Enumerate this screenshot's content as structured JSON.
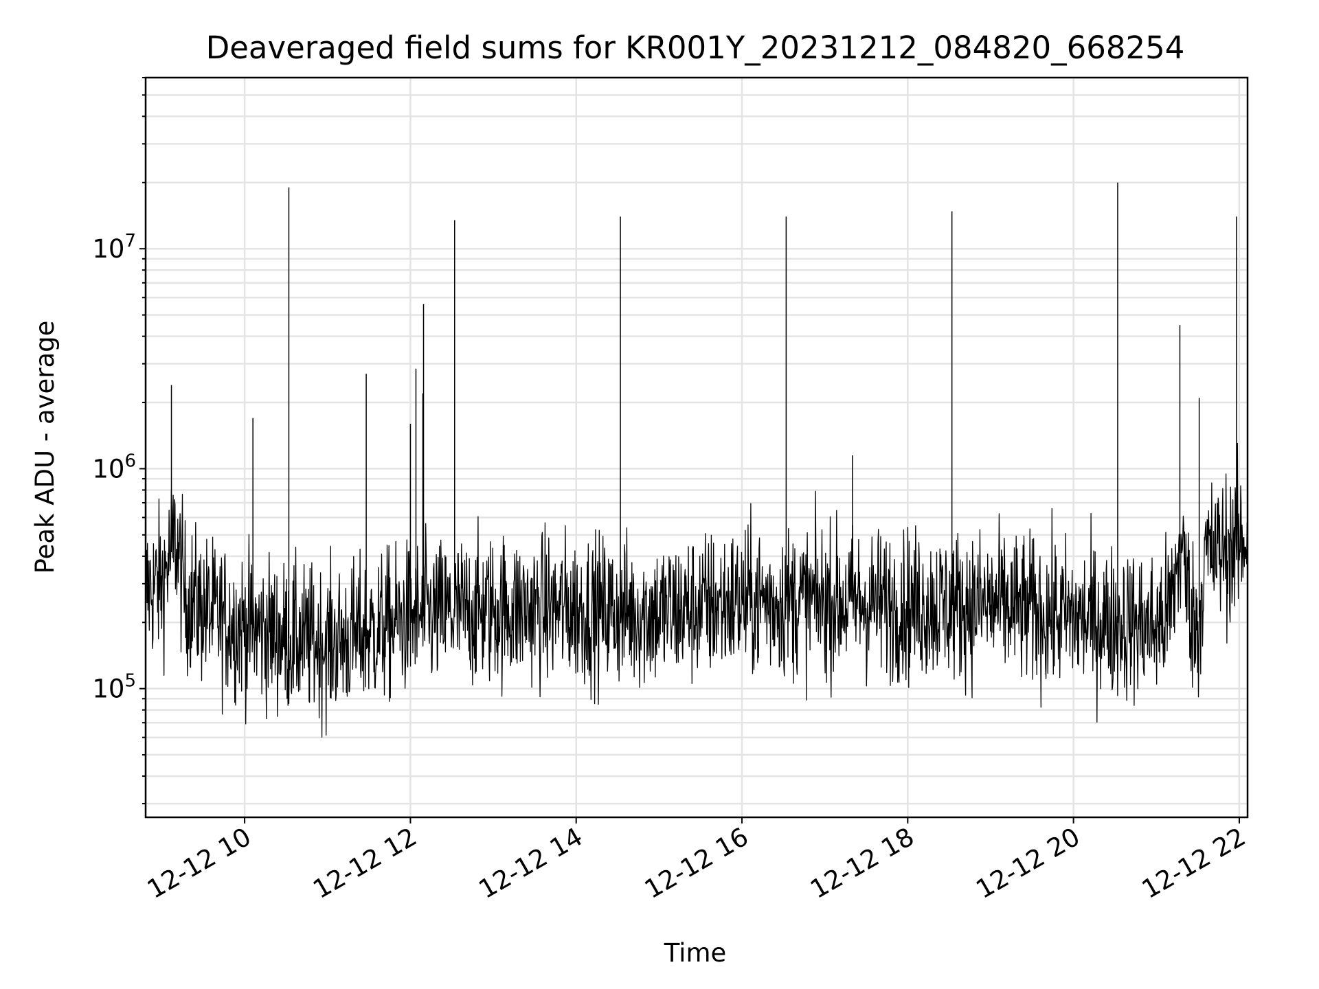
{
  "chart_data": {
    "type": "line",
    "title": "Deaveraged field sums for KR001Y_20231212_084820_668254",
    "xlabel": "Time",
    "ylabel": "Peak ADU - average",
    "yscale": "log",
    "ylim": [
      26000,
      60000000
    ],
    "xlim": [
      "2023-12-12T08:48:20",
      "2023-12-12T22:06:00"
    ],
    "x_ticks": [
      {
        "label": "12-12 10",
        "value": "2023-12-12T10:00:00"
      },
      {
        "label": "12-12 12",
        "value": "2023-12-12T12:00:00"
      },
      {
        "label": "12-12 14",
        "value": "2023-12-12T14:00:00"
      },
      {
        "label": "12-12 16",
        "value": "2023-12-12T16:00:00"
      },
      {
        "label": "12-12 18",
        "value": "2023-12-12T18:00:00"
      },
      {
        "label": "12-12 20",
        "value": "2023-12-12T20:00:00"
      },
      {
        "label": "12-12 22",
        "value": "2023-12-12T22:00:00"
      }
    ],
    "y_ticks": [
      {
        "base": "10",
        "exp": "5",
        "value": 100000
      },
      {
        "base": "10",
        "exp": "6",
        "value": 1000000
      },
      {
        "base": "10",
        "exp": "7",
        "value": 10000000
      }
    ],
    "grid": "on",
    "line_color": "#000000",
    "baseline": [
      [
        "2023-12-12T08:48:20",
        280000
      ],
      [
        "2023-12-12T09:00:00",
        300000
      ],
      [
        "2023-12-12T09:10:00",
        480000
      ],
      [
        "2023-12-12T09:17:00",
        260000
      ],
      [
        "2023-12-12T09:40:00",
        210000
      ],
      [
        "2023-12-12T10:30:00",
        170000
      ],
      [
        "2023-12-12T11:00:00",
        160000
      ],
      [
        "2023-12-12T11:30:00",
        180000
      ],
      [
        "2023-12-12T12:00:00",
        210000
      ],
      [
        "2023-12-12T13:00:00",
        230000
      ],
      [
        "2023-12-12T14:00:00",
        230000
      ],
      [
        "2023-12-12T15:00:00",
        220000
      ],
      [
        "2023-12-12T16:00:00",
        250000
      ],
      [
        "2023-12-12T17:00:00",
        250000
      ],
      [
        "2023-12-12T18:00:00",
        240000
      ],
      [
        "2023-12-12T19:00:00",
        240000
      ],
      [
        "2023-12-12T20:00:00",
        210000
      ],
      [
        "2023-12-12T21:00:00",
        190000
      ],
      [
        "2023-12-12T21:10:00",
        230000
      ],
      [
        "2023-12-12T21:18:00",
        450000
      ],
      [
        "2023-12-12T21:25:00",
        230000
      ],
      [
        "2023-12-12T21:30:00",
        180000
      ],
      [
        "2023-12-12T21:35:00",
        400000
      ],
      [
        "2023-12-12T22:00:00",
        450000
      ],
      [
        "2023-12-12T22:06:00",
        500000
      ]
    ],
    "spikes": [
      {
        "x": "2023-12-12T09:07:00",
        "y": 2400000
      },
      {
        "x": "2023-12-12T10:06:00",
        "y": 1700000
      },
      {
        "x": "2023-12-12T10:32:00",
        "y": 19000000
      },
      {
        "x": "2023-12-12T11:28:00",
        "y": 2700000
      },
      {
        "x": "2023-12-12T12:00:00",
        "y": 1600000
      },
      {
        "x": "2023-12-12T12:04:00",
        "y": 2850000
      },
      {
        "x": "2023-12-12T12:09:00",
        "y": 2200000
      },
      {
        "x": "2023-12-12T12:09:30",
        "y": 5600000
      },
      {
        "x": "2023-12-12T12:32:00",
        "y": 13500000
      },
      {
        "x": "2023-12-12T14:32:00",
        "y": 14000000
      },
      {
        "x": "2023-12-12T16:32:00",
        "y": 14000000
      },
      {
        "x": "2023-12-12T17:20:00",
        "y": 1150000
      },
      {
        "x": "2023-12-12T18:32:00",
        "y": 14800000
      },
      {
        "x": "2023-12-12T20:32:00",
        "y": 20000000
      },
      {
        "x": "2023-12-12T21:17:00",
        "y": 4500000
      },
      {
        "x": "2023-12-12T21:31:00",
        "y": 2100000
      },
      {
        "x": "2023-12-12T21:58:00",
        "y": 14000000
      }
    ]
  }
}
